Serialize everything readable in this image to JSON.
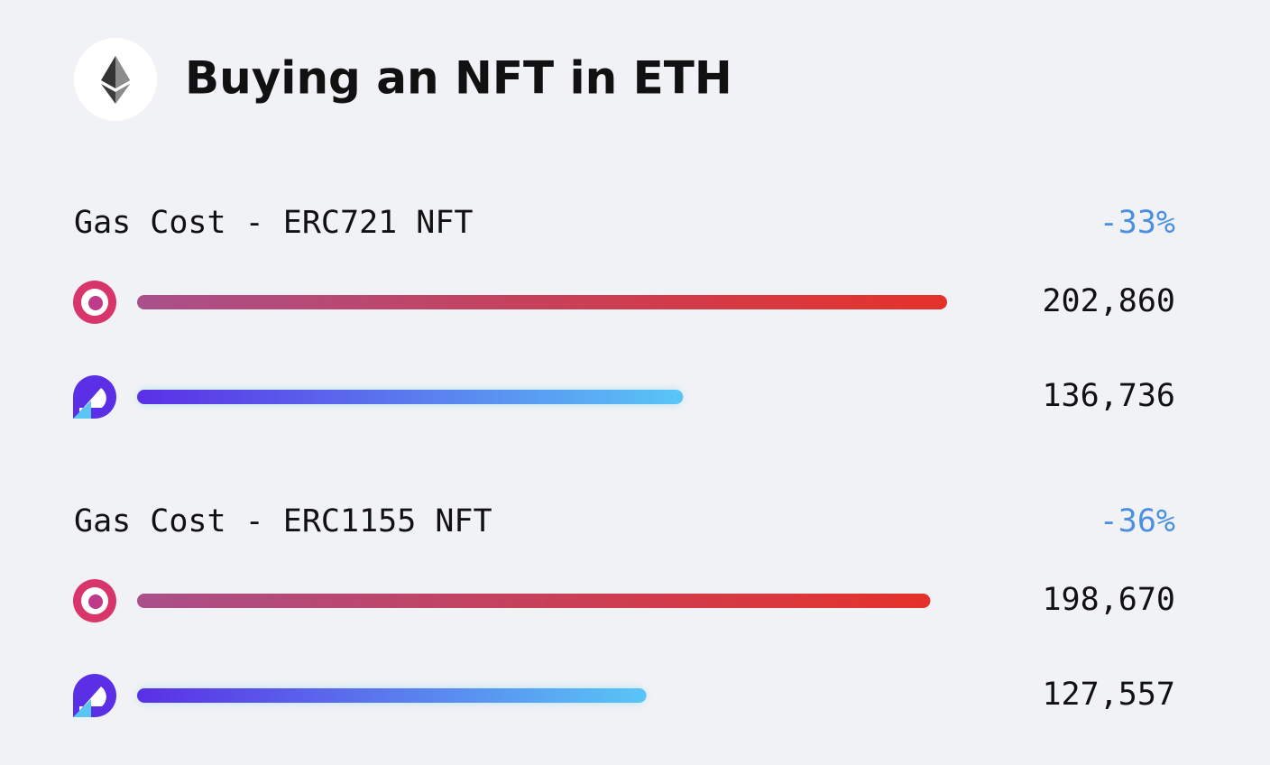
{
  "header": {
    "title": "Buying an NFT in ETH"
  },
  "chart_data": [
    {
      "type": "bar",
      "orientation": "horizontal",
      "title": "Gas Cost - ERC721 NFT",
      "annotation": "-33%",
      "values": [
        202860,
        136736
      ],
      "value_labels": [
        "202,860",
        "136,736"
      ],
      "colors": [
        [
          "#a9508a",
          "#e5322a"
        ],
        [
          "#5a2fe6",
          "#59c6f6"
        ]
      ]
    },
    {
      "type": "bar",
      "orientation": "horizontal",
      "title": "Gas Cost - ERC1155 NFT",
      "annotation": "-36%",
      "values": [
        198670,
        127557
      ],
      "value_labels": [
        "198,670",
        "127,557"
      ],
      "colors": [
        [
          "#a9508a",
          "#e5322a"
        ],
        [
          "#5a2fe6",
          "#59c6f6"
        ]
      ]
    }
  ]
}
